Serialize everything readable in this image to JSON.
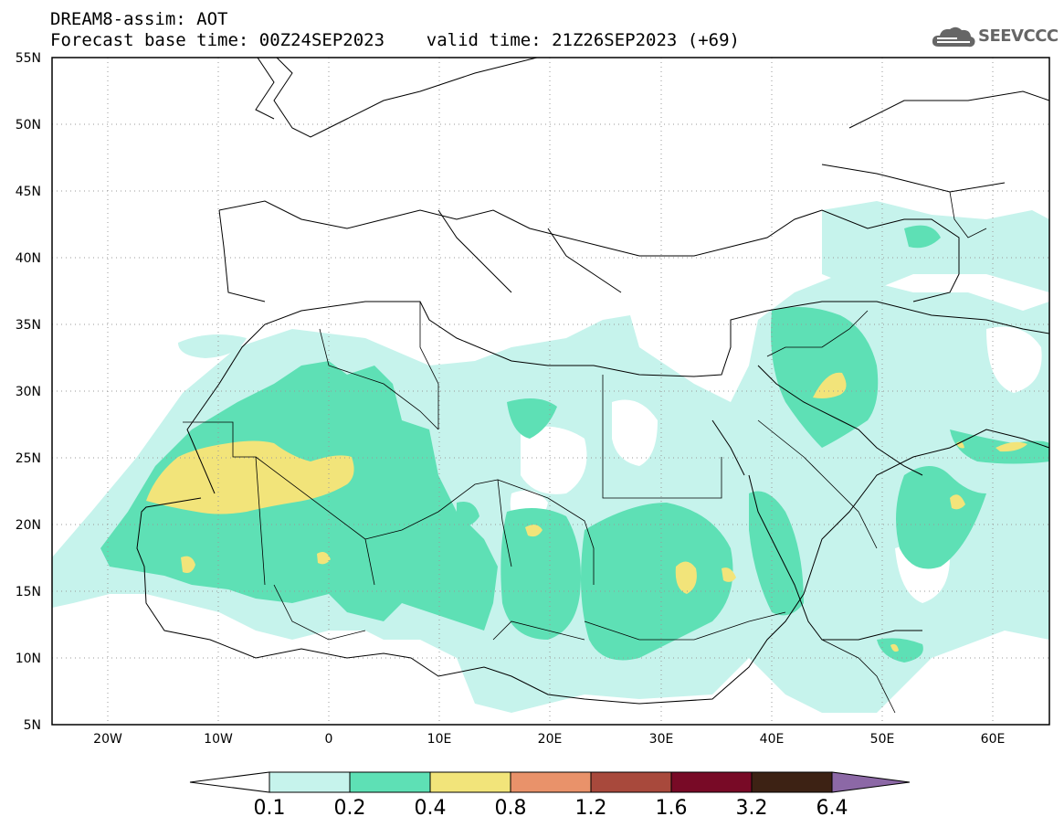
{
  "header": {
    "line1": "DREAM8-assim: AOT",
    "line2": "Forecast base time: 00Z24SEP2023    valid time: 21Z26SEP2023 (+69)"
  },
  "logo": {
    "text": "SEEVCCC",
    "icon": "cloud-icon"
  },
  "map": {
    "lat_labels": [
      "55N",
      "50N",
      "45N",
      "40N",
      "35N",
      "30N",
      "25N",
      "20N",
      "15N",
      "10N",
      "5N"
    ],
    "lon_labels": [
      "20W",
      "10W",
      "0",
      "10E",
      "20E",
      "30E",
      "40E",
      "50E",
      "60E"
    ],
    "lon_range": [
      -25,
      65
    ],
    "lat_range": [
      5,
      55
    ],
    "grid": "dotted"
  },
  "colorbar": {
    "levels": [
      "0.1",
      "0.2",
      "0.4",
      "0.8",
      "1.2",
      "1.6",
      "3.2",
      "6.4"
    ],
    "colors": [
      "#ffffff",
      "#c6f3ec",
      "#5ee0b5",
      "#f2e47a",
      "#e9926a",
      "#a8493c",
      "#780a26",
      "#3d2214",
      "#8c68a6"
    ]
  }
}
